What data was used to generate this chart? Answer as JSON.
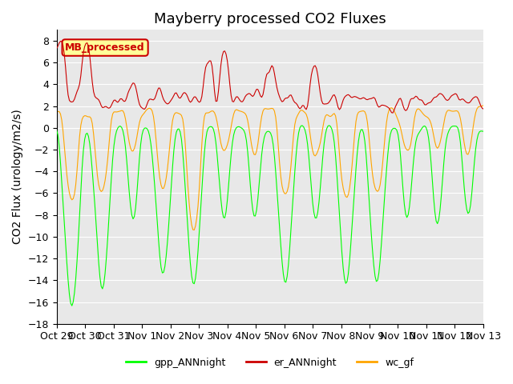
{
  "title": "Mayberry processed CO2 Fluxes",
  "ylabel": "CO2 Flux (urology/m2/s)",
  "ylim": [
    -18,
    9
  ],
  "yticks": [
    8,
    6,
    4,
    2,
    0,
    -2,
    -4,
    -6,
    -8,
    -10,
    -12,
    -14,
    -16,
    -18
  ],
  "date_labels": [
    "Oct 29",
    "Oct 30",
    "Oct 31",
    "Nov 1",
    "Nov 2",
    "Nov 3",
    "Nov 4",
    "Nov 5",
    "Nov 6",
    "Nov 7",
    "Nov 8",
    "Nov 9",
    "Nov 10",
    "Nov 11",
    "Nov 12",
    "Nov 13"
  ],
  "legend_labels": [
    "gpp_ANNnight",
    "er_ANNnight",
    "wc_gf"
  ],
  "legend_colors": [
    "#00FF00",
    "#CC0000",
    "#FFA500"
  ],
  "line_colors": [
    "#00FF00",
    "#CC0000",
    "#FFA500"
  ],
  "inset_label": "MB_processed",
  "inset_color": "#CC0000",
  "inset_bg": "#FFFF99",
  "plot_bg": "#E8E8E8",
  "title_fontsize": 13,
  "axis_fontsize": 10,
  "tick_fontsize": 9,
  "n_points": 336,
  "random_seed": 42
}
